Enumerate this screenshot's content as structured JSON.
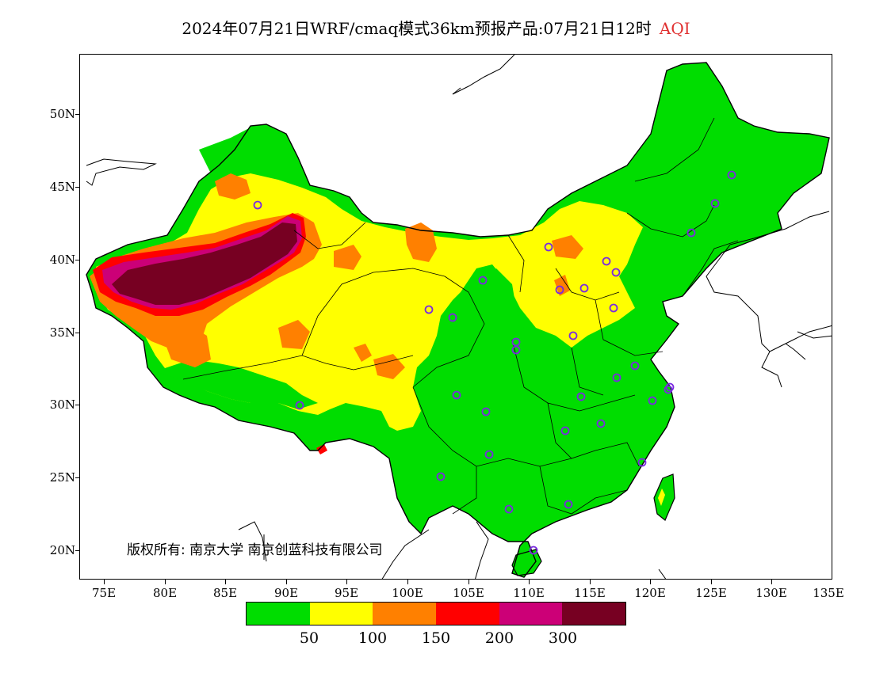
{
  "title": {
    "main": "2024年07月21日WRF/cmaq模式36km预报产品:07月21日12时",
    "variable": "AQI"
  },
  "axes": {
    "lat_labels": [
      "50N",
      "45N",
      "40N",
      "35N",
      "30N",
      "25N",
      "20N"
    ],
    "lon_labels": [
      "75E",
      "80E",
      "85E",
      "90E",
      "95E",
      "100E",
      "105E",
      "110E",
      "115E",
      "120E",
      "125E",
      "130E",
      "135E"
    ]
  },
  "copyright": "版权所有: 南京大学  南京创蓝科技有限公司",
  "legend": {
    "colors": [
      "#00dd00",
      "#ffff00",
      "#ff8000",
      "#ff0000",
      "#cc0077",
      "#770022"
    ],
    "labels": [
      "50",
      "100",
      "150",
      "200",
      "300"
    ]
  },
  "colors": {
    "good": "#00dd00",
    "moderate": "#ffff00",
    "sensitive": "#ff8000",
    "unhealthy": "#ff0000",
    "very_unhealthy": "#cc0077",
    "hazardous": "#770022",
    "station_marker": "#7a2ae0",
    "title_accent": "#e03030"
  }
}
